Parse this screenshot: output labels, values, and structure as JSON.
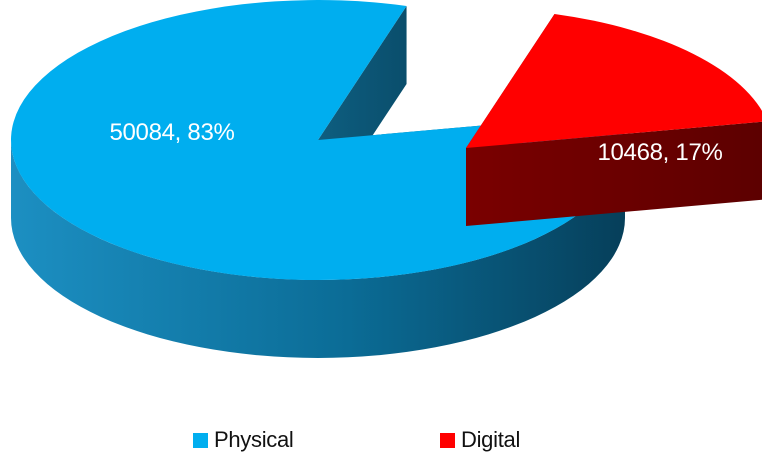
{
  "chart_data": {
    "type": "pie",
    "title": "",
    "style": "3d-exploded",
    "slices": [
      {
        "name": "Physical",
        "value": 50084,
        "percent": 83,
        "label": "50084,  83%",
        "color": "#00AEEF",
        "side_color": "#0A6E98"
      },
      {
        "name": "Digital",
        "value": 10468,
        "percent": 17,
        "label": "10468, 17%",
        "color": "#FF0000",
        "side_color": "#6E0000"
      }
    ],
    "legend": {
      "placement": "bottom",
      "entries": [
        {
          "label": "Physical",
          "color": "#00AEEF"
        },
        {
          "label": "Digital",
          "color": "#FF0000"
        }
      ]
    }
  }
}
